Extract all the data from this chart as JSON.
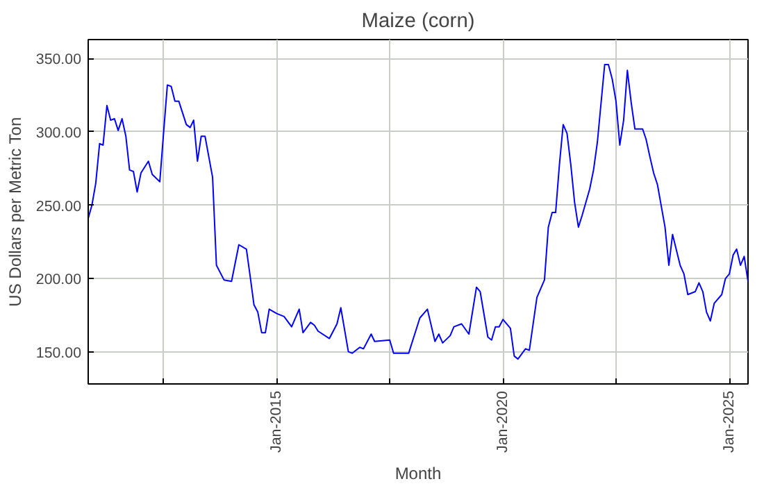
{
  "chart_data": {
    "type": "line",
    "title": "Maize (corn)",
    "xlabel": "Month",
    "ylabel": "US Dollars per Metric Ton",
    "x": [
      "2010-11",
      "2010-12",
      "2011-01",
      "2011-02",
      "2011-03",
      "2011-04",
      "2011-05",
      "2011-06",
      "2011-07",
      "2011-08",
      "2011-09",
      "2011-10",
      "2011-11",
      "2011-12",
      "2012-01",
      "2012-03",
      "2012-04",
      "2012-06",
      "2012-07",
      "2012-08",
      "2012-09",
      "2012-10",
      "2012-11",
      "2013-01",
      "2013-02",
      "2013-03",
      "2013-04",
      "2013-05",
      "2013-06",
      "2013-08",
      "2013-09",
      "2013-11",
      "2014-01",
      "2014-03",
      "2014-05",
      "2014-06",
      "2014-07",
      "2014-08",
      "2014-09",
      "2014-10",
      "2014-11",
      "2015-01",
      "2015-03",
      "2015-05",
      "2015-07",
      "2015-08",
      "2015-10",
      "2015-11",
      "2015-12",
      "2016-03",
      "2016-05",
      "2016-06",
      "2016-08",
      "2016-09",
      "2016-11",
      "2016-12",
      "2017-02",
      "2017-03",
      "2017-07",
      "2017-08",
      "2017-12",
      "2018-03",
      "2018-05",
      "2018-07",
      "2018-08",
      "2018-09",
      "2018-11",
      "2018-12",
      "2019-02",
      "2019-04",
      "2019-06",
      "2019-07",
      "2019-09",
      "2019-10",
      "2019-11",
      "2019-12",
      "2020-01",
      "2020-03",
      "2020-04",
      "2020-05",
      "2020-07",
      "2020-08",
      "2020-10",
      "2020-12",
      "2021-01",
      "2021-02",
      "2021-03",
      "2021-04",
      "2021-05",
      "2021-06",
      "2021-07",
      "2021-08",
      "2021-09",
      "2021-10",
      "2021-12",
      "2022-01",
      "2022-02",
      "2022-04",
      "2022-05",
      "2022-06",
      "2022-07",
      "2022-08",
      "2022-09",
      "2022-10",
      "2022-11",
      "2022-12",
      "2023-02",
      "2023-03",
      "2023-04",
      "2023-05",
      "2023-06",
      "2023-08",
      "2023-09",
      "2023-10",
      "2023-12",
      "2024-01",
      "2024-02",
      "2024-04",
      "2024-05",
      "2024-06",
      "2024-07",
      "2024-08",
      "2024-09",
      "2024-11",
      "2024-12",
      "2025-01",
      "2025-02",
      "2025-03",
      "2025-04",
      "2025-05",
      "2025-06"
    ],
    "series": [
      {
        "color": "#0000ff",
        "values": [
          241,
          250,
          265,
          292,
          291,
          318,
          308,
          309,
          301,
          309,
          297,
          274,
          273,
          259,
          272,
          280,
          271,
          266,
          299,
          332,
          331,
          321,
          321,
          305,
          303,
          308,
          280,
          297,
          297,
          269,
          209,
          199,
          198,
          223,
          220,
          201,
          182,
          177,
          163,
          163,
          179,
          176,
          174,
          167,
          179,
          163,
          170,
          168,
          164,
          159,
          169,
          180,
          150,
          149,
          153,
          152,
          162,
          157,
          158,
          149,
          149,
          173,
          179,
          157,
          162,
          156,
          161,
          167,
          169,
          162,
          194,
          191,
          160,
          158,
          167,
          167,
          172,
          166,
          147,
          145,
          152,
          151,
          187,
          199,
          235,
          245,
          245,
          278,
          305,
          299,
          278,
          252,
          235,
          243,
          261,
          274,
          293,
          346,
          346,
          336,
          321,
          291,
          308,
          342,
          320,
          302,
          302,
          295,
          283,
          272,
          264,
          235,
          209,
          230,
          209,
          203,
          189,
          191,
          197,
          191,
          177,
          171,
          183,
          189,
          200,
          203,
          216,
          220,
          209,
          215,
          198
        ]
      }
    ],
    "xlim": [
      "2010-11",
      "2025-06"
    ],
    "xticks": [
      {
        "value": "2012-07",
        "label": null
      },
      {
        "value": "2015-01",
        "label": "Jan-2015"
      },
      {
        "value": "2017-07",
        "label": null
      },
      {
        "value": "2020-01",
        "label": "Jan-2020"
      },
      {
        "value": "2022-07",
        "label": null
      },
      {
        "value": "2025-01",
        "label": "Jan-2025"
      }
    ],
    "ylim": [
      128,
      363
    ],
    "yticks": [
      {
        "value": 150,
        "label": "150.00"
      },
      {
        "value": 200,
        "label": "200.00"
      },
      {
        "value": 250,
        "label": "250.00"
      },
      {
        "value": 300,
        "label": "300.00"
      },
      {
        "value": 350,
        "label": "350.00"
      }
    ],
    "grid": true,
    "marker": "none",
    "line_style": "solid"
  }
}
